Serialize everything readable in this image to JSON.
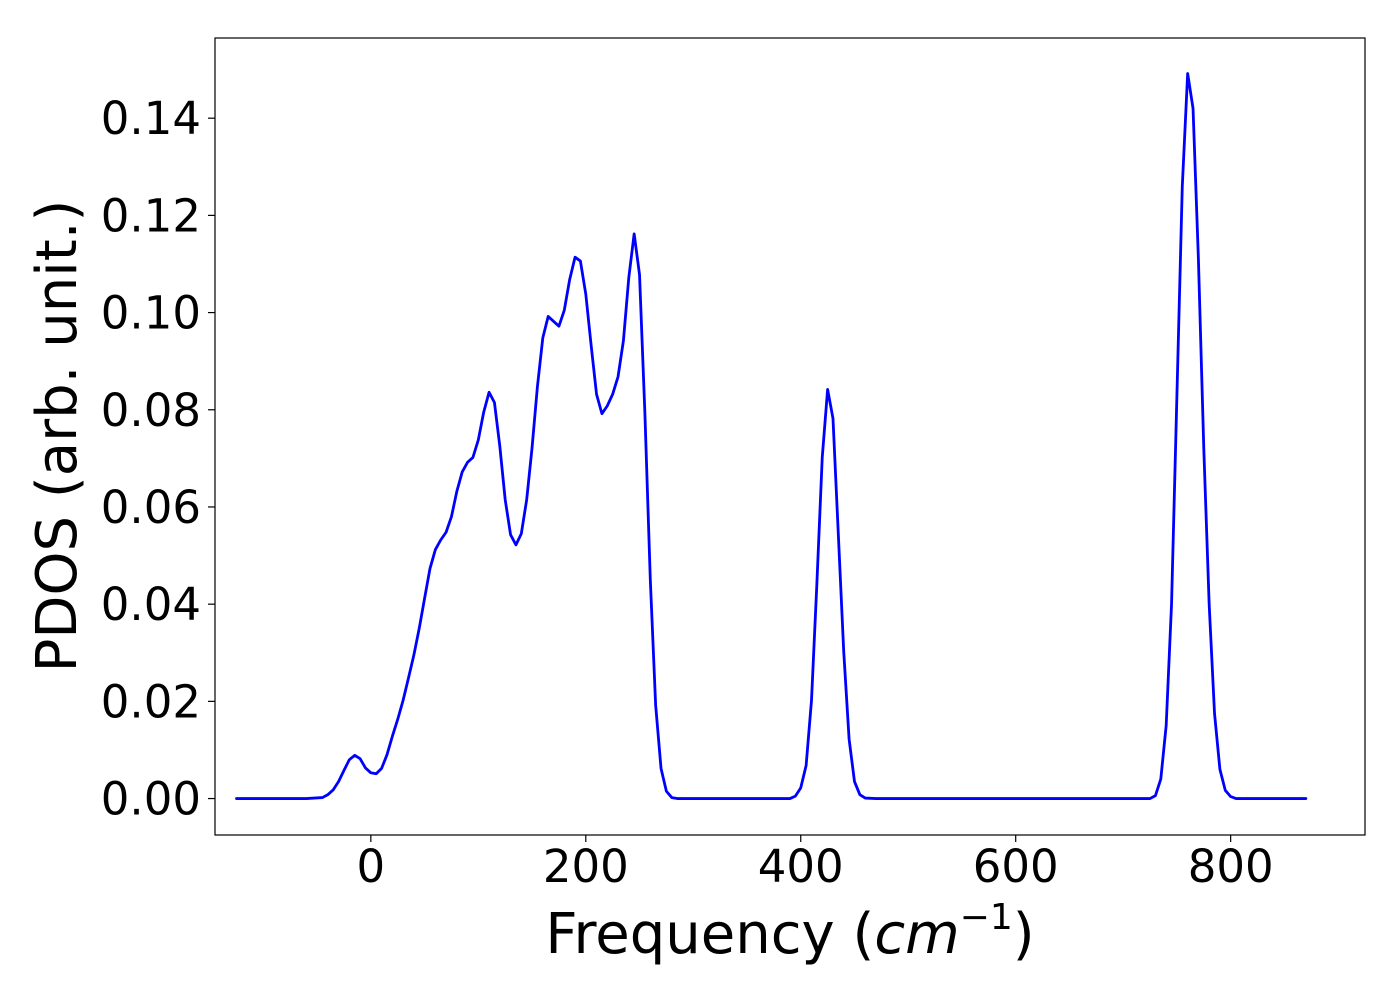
{
  "chart_data": {
    "type": "line",
    "title": "",
    "xlabel": "Frequency (",
    "xlabel_math": "cm",
    "xlabel_sup": "−1",
    "xlabel_close": ")",
    "ylabel": "PDOS (arb. unit.)",
    "xlim": [
      -145,
      925
    ],
    "ylim": [
      -0.0075,
      0.1565
    ],
    "xticks": [
      0,
      200,
      400,
      600,
      800
    ],
    "xtick_labels": [
      "0",
      "200",
      "400",
      "600",
      "800"
    ],
    "yticks": [
      0.0,
      0.02,
      0.04,
      0.06,
      0.08,
      0.1,
      0.12,
      0.14
    ],
    "ytick_labels": [
      "0.00",
      "0.02",
      "0.04",
      "0.06",
      "0.08",
      "0.10",
      "0.12",
      "0.14"
    ],
    "grid": false,
    "line_color": "#0000ff",
    "series": [
      {
        "x": [
          -125,
          -60,
          -45,
          -40,
          -35,
          -30,
          -25,
          -20,
          -15,
          -10,
          -5,
          0,
          5,
          10,
          15,
          20,
          25,
          30,
          35,
          40,
          45,
          50,
          55,
          60,
          65,
          70,
          75,
          80,
          85,
          90,
          95,
          100,
          105,
          110,
          115,
          120,
          125,
          130,
          135,
          140,
          145,
          150,
          155,
          160,
          165,
          170,
          175,
          180,
          185,
          190,
          195,
          200,
          205,
          210,
          215,
          220,
          225,
          230,
          235,
          240,
          245,
          250,
          255,
          260,
          265,
          270,
          275,
          280,
          285,
          290,
          300,
          390,
          395,
          400,
          405,
          410,
          415,
          420,
          425,
          430,
          435,
          440,
          445,
          450,
          455,
          460,
          470,
          725,
          730,
          735,
          740,
          745,
          750,
          755,
          760,
          765,
          770,
          775,
          780,
          785,
          790,
          795,
          800,
          805,
          810,
          820,
          870
        ],
        "y": [
          0.0,
          0.0,
          0.0002,
          0.0008,
          0.0018,
          0.0035,
          0.0058,
          0.008,
          0.0089,
          0.0082,
          0.0063,
          0.0053,
          0.0051,
          0.0062,
          0.009,
          0.0128,
          0.0163,
          0.0202,
          0.0248,
          0.0295,
          0.035,
          0.0412,
          0.0473,
          0.0512,
          0.0532,
          0.0548,
          0.058,
          0.0632,
          0.0672,
          0.0692,
          0.0702,
          0.0738,
          0.0795,
          0.0836,
          0.0815,
          0.0725,
          0.0615,
          0.0543,
          0.0522,
          0.0545,
          0.0615,
          0.0722,
          0.0848,
          0.0948,
          0.0992,
          0.0982,
          0.0972,
          0.1005,
          0.1068,
          0.1114,
          0.1106,
          0.1038,
          0.0932,
          0.0832,
          0.0792,
          0.0808,
          0.0832,
          0.0868,
          0.0942,
          0.1072,
          0.1162,
          0.1078,
          0.0792,
          0.0452,
          0.0192,
          0.0062,
          0.0015,
          0.0002,
          0.0,
          0.0,
          0.0,
          0.0,
          0.0005,
          0.0022,
          0.0068,
          0.0202,
          0.0442,
          0.0702,
          0.0842,
          0.0782,
          0.0542,
          0.0302,
          0.0122,
          0.0035,
          0.0008,
          0.0001,
          0.0,
          0.0,
          0.0006,
          0.004,
          0.015,
          0.04,
          0.083,
          0.126,
          0.1492,
          0.142,
          0.111,
          0.072,
          0.04,
          0.0175,
          0.006,
          0.0017,
          0.0004,
          0.0,
          0.0,
          0.0,
          0.0
        ]
      }
    ]
  }
}
